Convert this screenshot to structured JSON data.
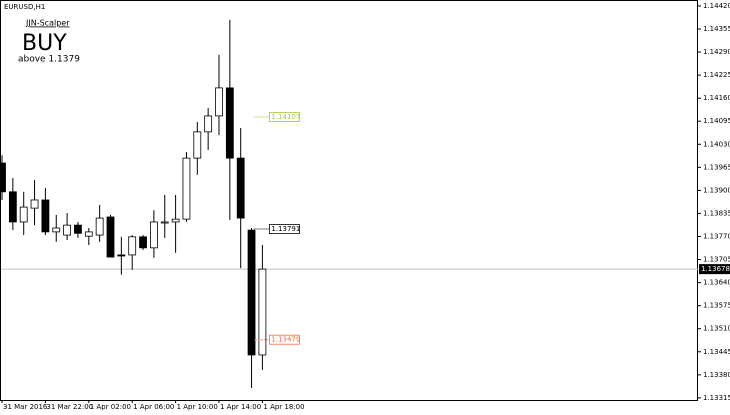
{
  "chart_data": {
    "type": "candlestick",
    "title": "EURUSD,H1",
    "indicator_name": "JJN-Scalper",
    "signal": "BUY",
    "signal_note": "above 1.1379",
    "signal_color": "#9acd32",
    "categories": [
      "31 Mar 2016",
      null,
      null,
      null,
      "31 Mar 22:00",
      null,
      null,
      null,
      "1 Apr 02:00",
      null,
      null,
      null,
      "1 Apr 06:00",
      null,
      null,
      null,
      "1 Apr 10:00",
      null,
      null,
      null,
      "1 Apr 14:00",
      null,
      null,
      null,
      "1 Apr 18:00"
    ],
    "open": [
      1.13977,
      1.13896,
      1.13811,
      1.1385,
      1.13873,
      1.13783,
      1.13774,
      1.13802,
      1.13771,
      1.13774,
      1.13825,
      1.13718,
      1.13718,
      1.13769,
      1.13738,
      1.13808,
      1.13811,
      1.13819,
      1.13991,
      1.14065,
      1.1411,
      1.14189,
      1.13991,
      1.13788,
      1.13436
    ],
    "high": [
      1.13999,
      1.13935,
      1.13896,
      1.13929,
      1.13907,
      1.13831,
      1.13836,
      1.13811,
      1.13794,
      1.13859,
      1.13831,
      1.13769,
      1.13774,
      1.13774,
      1.13844,
      1.13887,
      1.13887,
      1.14008,
      1.14093,
      1.14132,
      1.14282,
      1.14381,
      1.14076,
      1.13794,
      1.13746
    ],
    "low": [
      1.13873,
      1.13788,
      1.13774,
      1.13802,
      1.13774,
      1.13755,
      1.1376,
      1.13766,
      1.13746,
      1.13755,
      1.13712,
      1.13662,
      1.13676,
      1.13732,
      1.1371,
      1.13766,
      1.13724,
      1.13811,
      1.13944,
      1.14014,
      1.14056,
      1.13817,
      1.13681,
      1.13343,
      1.13394
    ],
    "close": [
      1.13896,
      1.13811,
      1.13853,
      1.13873,
      1.13783,
      1.13794,
      1.13802,
      1.13779,
      1.13783,
      1.13822,
      1.13712,
      1.13715,
      1.13769,
      1.13738,
      1.13811,
      1.13811,
      1.13819,
      1.13991,
      1.14065,
      1.1411,
      1.14189,
      1.13991,
      1.13822,
      1.13436,
      1.13678
    ],
    "current_price": 1.13678,
    "levels": [
      {
        "value": 1.14107,
        "color": "#9acd32"
      },
      {
        "value": 1.13791,
        "color": "#000000"
      },
      {
        "value": 1.13479,
        "color": "#ff6a3d"
      }
    ],
    "ylim": [
      1.13309,
      1.14434
    ],
    "yticks": [
      {
        "value": 1.1442,
        "label": "1.14420"
      },
      1.14355,
      {
        "value": 1.1429,
        "label": "1.14290"
      },
      1.14225,
      {
        "value": 1.1416,
        "label": "1.14160"
      },
      1.14095,
      {
        "value": 1.1403,
        "label": "1.14030"
      },
      1.13965,
      {
        "value": 1.139,
        "label": "1.13900"
      },
      1.13835,
      {
        "value": 1.1377,
        "label": "1.13770"
      },
      1.13705,
      {
        "value": 1.1364,
        "label": "1.13640"
      },
      1.13575,
      {
        "value": 1.1351,
        "label": "1.13510"
      },
      1.13445,
      {
        "value": 1.1338,
        "label": "1.13380"
      },
      1.13315
    ]
  }
}
